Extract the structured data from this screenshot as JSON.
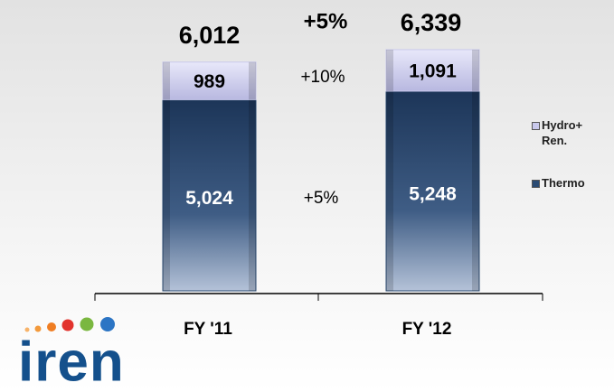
{
  "chart_data": {
    "type": "stacked_bar",
    "categories": [
      "FY '11",
      "FY '12"
    ],
    "series": [
      {
        "name": "Thermo",
        "color": "#2a4a72",
        "values": [
          5024,
          5248
        ],
        "value_labels": [
          "5,024",
          "5,248"
        ]
      },
      {
        "name": "Hydro+ Ren.",
        "color": "#c9c9ec",
        "values": [
          989,
          1091
        ],
        "value_labels": [
          "989",
          "1,091"
        ]
      }
    ],
    "totals": [
      6012,
      6339
    ],
    "total_labels": [
      "6,012",
      "6,339"
    ],
    "annotations": [
      "+5%",
      "+10%",
      "+5%"
    ],
    "legend": "right",
    "logo": "iren"
  }
}
